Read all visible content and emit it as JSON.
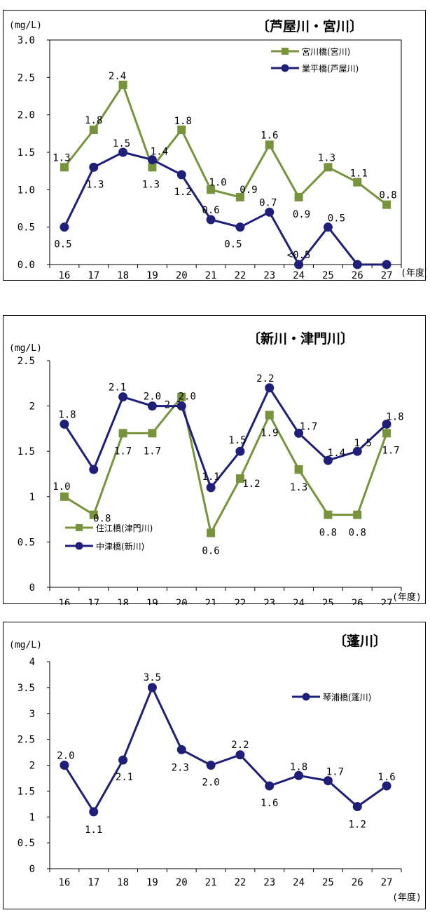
{
  "chart_data": [
    {
      "type": "line",
      "title": "〔芦屋川・宮川〕",
      "unit": "(mg/L)",
      "x_unit": "(年度)",
      "categories": [
        "16",
        "17",
        "18",
        "19",
        "20",
        "21",
        "22",
        "23",
        "24",
        "25",
        "26",
        "27"
      ],
      "ylim": [
        0,
        3.0
      ],
      "yticks": [
        "0.0",
        "0.5",
        "1.0",
        "1.5",
        "2.0",
        "2.5",
        "3.0"
      ],
      "grid": false,
      "legend_position": "top-right",
      "series": [
        {
          "name": "宮川橋(宮川)",
          "color": "#77933c",
          "marker": "square",
          "values": [
            1.3,
            1.8,
            2.4,
            1.3,
            1.8,
            1.0,
            0.9,
            1.6,
            0.9,
            1.3,
            1.1,
            0.8
          ],
          "labels": [
            "1.3",
            "1.8",
            "2.4",
            "1.3",
            "1.8",
            "1.0",
            "0.9",
            "1.6",
            "0.9",
            "1.3",
            "1.1",
            "0.8"
          ]
        },
        {
          "name": "業平橋(芦屋川)",
          "color": "#1f1f7a",
          "marker": "circle",
          "values": [
            0.5,
            1.3,
            1.5,
            1.4,
            1.2,
            0.6,
            0.5,
            0.7,
            0,
            0.5,
            0,
            0
          ],
          "labels": [
            "0.5",
            "1.3",
            "1.5",
            "1.4",
            "1.2",
            "0.6",
            "0.5",
            "0.7",
            "<0.5",
            "0.5",
            "",
            ""
          ]
        }
      ]
    },
    {
      "type": "line",
      "title": "〔新川・津門川〕",
      "unit": "(mg/L)",
      "x_unit": "(年度)",
      "categories": [
        "16",
        "17",
        "18",
        "19",
        "20",
        "21",
        "22",
        "23",
        "24",
        "25",
        "26",
        "27"
      ],
      "ylim": [
        0,
        2.5
      ],
      "yticks": [
        "0",
        "0.5",
        "1",
        "1.5",
        "2",
        "2.5"
      ],
      "grid": false,
      "legend_position": "bottom-left",
      "series": [
        {
          "name": "住江橋(津門川)",
          "color": "#77933c",
          "marker": "square",
          "values": [
            1.0,
            0.8,
            1.7,
            1.7,
            2.1,
            0.6,
            1.2,
            1.9,
            1.3,
            0.8,
            0.8,
            1.7
          ],
          "labels": [
            "1.0",
            "0.8",
            "1.7",
            "1.7",
            "2.1",
            "0.6",
            "1.2",
            "1.9",
            "1.3",
            "0.8",
            "0.8",
            "1.7"
          ]
        },
        {
          "name": "中津橋(新川)",
          "color": "#1f1f7a",
          "marker": "circle",
          "values": [
            1.8,
            1.3,
            2.1,
            2.0,
            2.0,
            1.1,
            1.5,
            2.2,
            1.7,
            1.4,
            1.5,
            1.8
          ],
          "labels": [
            "1.8",
            "",
            "2.1",
            "2.0",
            "2.0",
            "1.1",
            "1.5",
            "2.2",
            "1.7",
            "1.4",
            "1.5",
            "1.8"
          ]
        }
      ]
    },
    {
      "type": "line",
      "title": "〔蓬川〕",
      "unit": "(mg/L)",
      "x_unit": "(年度)",
      "categories": [
        "16",
        "17",
        "18",
        "19",
        "20",
        "21",
        "22",
        "23",
        "24",
        "25",
        "26",
        "27"
      ],
      "ylim": [
        0,
        4
      ],
      "yticks": [
        "0",
        "0.5",
        "1",
        "1.5",
        "2",
        "2.5",
        "3",
        "3.5",
        "4"
      ],
      "grid": false,
      "legend_position": "top-right",
      "series": [
        {
          "name": "琴浦橋(蓬川)",
          "color": "#1f1f7a",
          "marker": "circle",
          "values": [
            2.0,
            1.1,
            2.1,
            3.5,
            2.3,
            2.0,
            2.2,
            1.6,
            1.8,
            1.7,
            1.2,
            1.6
          ],
          "labels": [
            "2.0",
            "1.1",
            "2.1",
            "3.5",
            "2.3",
            "2.0",
            "2.2",
            "1.6",
            "1.8",
            "1.7",
            "1.2",
            "1.6"
          ]
        }
      ]
    }
  ]
}
